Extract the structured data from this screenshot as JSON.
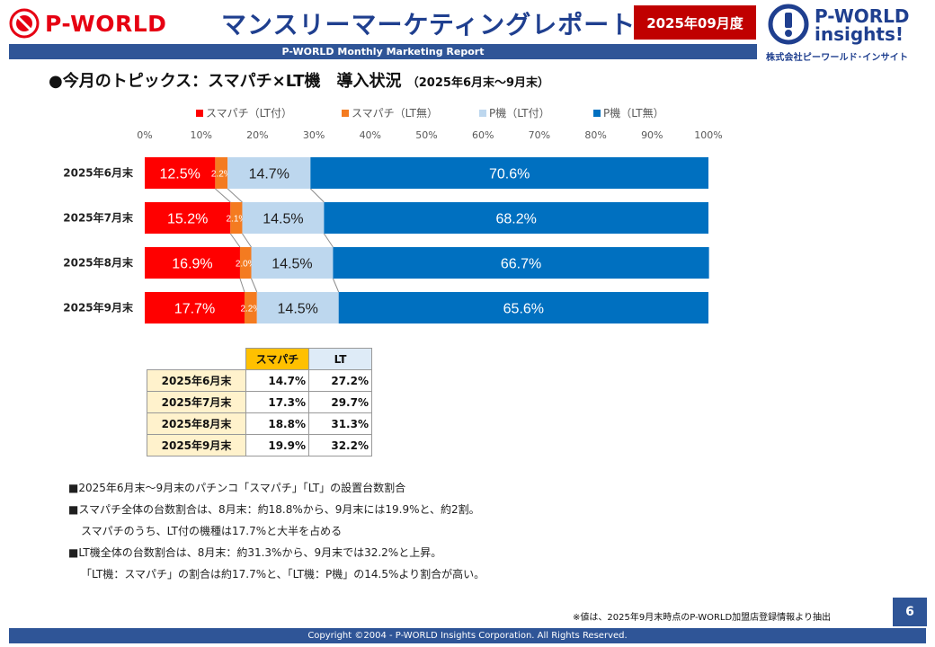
{
  "header": {
    "brand": "P-WORLD",
    "title": "マンスリーマーケティングレポート",
    "period": "2025年09月度",
    "insights_line1": "P-WORLD",
    "insights_line2": "insights!",
    "company": "株式会社ピーワールド･インサイト",
    "subtitle": "P-WORLD Monthly Marketing Report"
  },
  "topic": {
    "title": "●今月のトピックス：スマパチ×LT機　導入状況",
    "range": "（2025年6月末～9月末）"
  },
  "colors": {
    "brand_red": "#e60012",
    "navy": "#2f5597",
    "series": [
      "#ff0000",
      "#f47b20",
      "#bdd7ee",
      "#0070c0"
    ]
  },
  "chart_data": {
    "type": "bar",
    "orientation": "horizontal",
    "stacked": "percent",
    "categories": [
      "2025年6月末",
      "2025年7月末",
      "2025年8月末",
      "2025年9月末"
    ],
    "series": [
      {
        "name": "スマパチ（LT付）",
        "values": [
          12.5,
          15.2,
          16.9,
          17.7
        ],
        "labels": [
          "12.5%",
          "15.2%",
          "16.9%",
          "17.7%"
        ]
      },
      {
        "name": "スマパチ（LT無）",
        "values": [
          2.2,
          2.1,
          2.0,
          2.2
        ],
        "labels": [
          "2.2%",
          "2.1%",
          "2.0%",
          "2.2%"
        ]
      },
      {
        "name": "P機（LT付）",
        "values": [
          14.7,
          14.5,
          14.5,
          14.5
        ],
        "labels": [
          "14.7%",
          "14.5%",
          "14.5%",
          "14.5%"
        ]
      },
      {
        "name": "P機（LT無）",
        "values": [
          70.6,
          68.2,
          66.7,
          65.6
        ],
        "labels": [
          "70.6%",
          "68.2%",
          "66.7%",
          "65.6%"
        ]
      }
    ],
    "xlim": [
      0,
      100
    ],
    "xticks": [
      "0%",
      "10%",
      "20%",
      "30%",
      "40%",
      "50%",
      "60%",
      "70%",
      "80%",
      "90%",
      "100%"
    ],
    "legend": "top",
    "series_lines": true
  },
  "table": {
    "headers": [
      "スマパチ",
      "LT"
    ],
    "rows": [
      {
        "label": "2025年6月末",
        "smapachi": "14.7%",
        "lt": "27.2%"
      },
      {
        "label": "2025年7月末",
        "smapachi": "17.3%",
        "lt": "29.7%"
      },
      {
        "label": "2025年8月末",
        "smapachi": "18.8%",
        "lt": "31.3%"
      },
      {
        "label": "2025年9月末",
        "smapachi": "19.9%",
        "lt": "32.2%"
      }
    ]
  },
  "notes": [
    "■2025年6月末～9月末のパチンコ「スマパチ」「LT」の設置台数割合",
    "■スマパチ全体の台数割合は、8月末：約18.8%から、9月末には19.9%と、約2割。",
    "スマパチのうち、LT付の機種は17.7%と大半を占める",
    "■LT機全体の台数割合は、8月末：約31.3%から、9月末では32.2%と上昇。",
    "「LT機：スマパチ」の割合は約17.7%と、「LT機：P機」の14.5%より割合が高い。"
  ],
  "footer": {
    "note": "※値は、2025年9月末時点のP-WORLD加盟店登録情報より抽出",
    "page": "6",
    "copyright": "Copyright ©2004 -  P-WORLD Insights Corporation. All Rights Reserved."
  }
}
